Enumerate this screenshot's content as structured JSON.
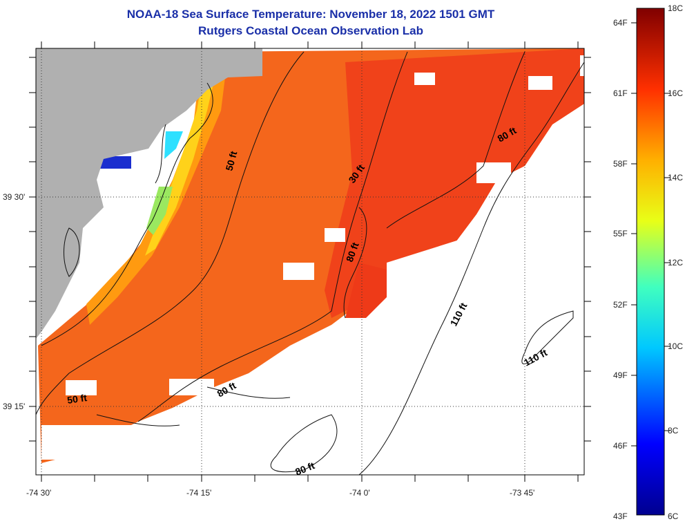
{
  "title_line1": "NOAA-18 Sea Surface Temperature:  November 18, 2022 1501 GMT",
  "title_line2": "Rutgers Coastal Ocean Observation Lab",
  "lat_labels": [
    "39 30'",
    "39 15'"
  ],
  "lon_labels": [
    "-74 30'",
    "-74 15'",
    "-74 0'",
    "-73 45'"
  ],
  "contour_labels": [
    "50 ft",
    "30 ft",
    "80 ft",
    "80 ft",
    "110 ft",
    "110 ft",
    "50 ft",
    "80 ft",
    "80 ft"
  ],
  "colorbar": {
    "f_labels": [
      "64F",
      "61F",
      "58F",
      "55F",
      "52F",
      "49F",
      "46F",
      "43F"
    ],
    "c_labels": [
      "18C",
      "16C",
      "14C",
      "12C",
      "10C",
      "8C",
      "6C"
    ]
  },
  "colors": {
    "title": "#1a2fa8",
    "land": "#b0b0b0",
    "no_data": "#ffffff"
  }
}
